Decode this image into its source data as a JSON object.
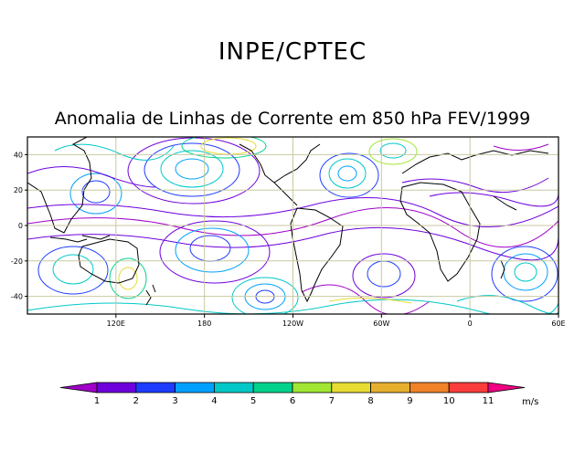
{
  "header": {
    "title": "INPE/CPTEC",
    "subtitle": "Anomalia de Linhas de Corrente em 850 hPa FEV/1999"
  },
  "map": {
    "lon_ticks": [
      {
        "label": "120E",
        "lon": 120
      },
      {
        "label": "180",
        "lon": 180
      },
      {
        "label": "120W",
        "lon": 240
      },
      {
        "label": "60W",
        "lon": 300
      },
      {
        "label": "0",
        "lon": 360
      },
      {
        "label": "60E",
        "lon": 420
      }
    ],
    "lat_ticks": [
      {
        "label": "40",
        "lat": 40
      },
      {
        "label": "20",
        "lat": 20
      },
      {
        "label": "0",
        "lat": 0
      },
      {
        "label": "-20",
        "lat": -20
      },
      {
        "label": "-40",
        "lat": -40
      }
    ],
    "lon_range": [
      60,
      420
    ],
    "lat_range": [
      -50,
      50
    ],
    "grid": true
  },
  "colorbar": {
    "unit": "m/s",
    "labels": [
      "1",
      "2",
      "3",
      "4",
      "5",
      "6",
      "7",
      "8",
      "9",
      "10",
      "11"
    ],
    "colors": [
      "#a000c8",
      "#6e00dc",
      "#1e3cff",
      "#00a0ff",
      "#00c8c8",
      "#00d28c",
      "#a0e632",
      "#e6dc32",
      "#e6af2d",
      "#f08228",
      "#fa3c3c",
      "#f00082"
    ]
  }
}
